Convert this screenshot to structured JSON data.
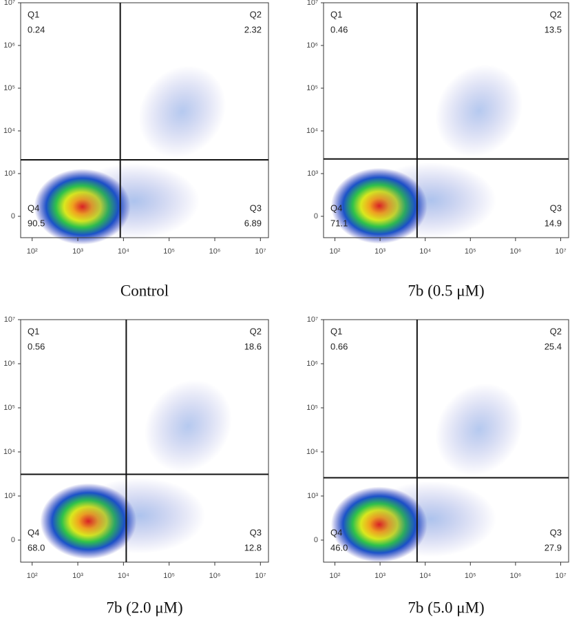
{
  "chart_data": [
    {
      "type": "scatter",
      "title": "Control",
      "x_scale": "log",
      "y_scale": "biexponential",
      "xlim": [
        56,
        15000000
      ],
      "ylim": [
        -500,
        10000000
      ],
      "xticks": [
        {
          "value": 100,
          "label": "10²"
        },
        {
          "value": 1000,
          "label": "10³"
        },
        {
          "value": 10000,
          "label": "10⁴"
        },
        {
          "value": 100000,
          "label": "10⁵"
        },
        {
          "value": 1000000,
          "label": "10⁶"
        },
        {
          "value": 10000000,
          "label": "10⁷"
        }
      ],
      "yticks": [
        0,
        {
          "value": 1000,
          "label": "10³"
        },
        {
          "value": 10000,
          "label": "10⁴"
        },
        {
          "value": 100000,
          "label": "10⁵"
        },
        {
          "value": 1000000,
          "label": "10⁶"
        },
        {
          "value": 10000000,
          "label": "10⁷"
        }
      ],
      "gate_x": 8500,
      "gate_y": 2100,
      "quadrant_names": [
        "Q1",
        "Q2",
        "Q3",
        "Q4"
      ],
      "quadrant_values": [
        0.24,
        2.32,
        6.89,
        90.5
      ],
      "quadrant_value_labels": [
        "0.24",
        "2.32",
        "6.89",
        "90.5"
      ]
    },
    {
      "type": "scatter",
      "title": "7b (0.5 μM)",
      "x_scale": "log",
      "y_scale": "biexponential",
      "xlim": [
        56,
        15000000
      ],
      "ylim": [
        -500,
        10000000
      ],
      "xticks": [
        {
          "value": 100,
          "label": "10²"
        },
        {
          "value": 1000,
          "label": "10³"
        },
        {
          "value": 10000,
          "label": "10⁴"
        },
        {
          "value": 100000,
          "label": "10⁵"
        },
        {
          "value": 1000000,
          "label": "10⁶"
        },
        {
          "value": 10000000,
          "label": "10⁷"
        }
      ],
      "yticks": [
        0,
        {
          "value": 1000,
          "label": "10³"
        },
        {
          "value": 10000,
          "label": "10⁴"
        },
        {
          "value": 100000,
          "label": "10⁵"
        },
        {
          "value": 1000000,
          "label": "10⁶"
        },
        {
          "value": 10000000,
          "label": "10⁷"
        }
      ],
      "gate_x": 6600,
      "gate_y": 2200,
      "quadrant_names": [
        "Q1",
        "Q2",
        "Q3",
        "Q4"
      ],
      "quadrant_values": [
        0.46,
        13.5,
        14.9,
        71.1
      ],
      "quadrant_value_labels": [
        "0.46",
        "13.5",
        "14.9",
        "71.1"
      ]
    },
    {
      "type": "scatter",
      "title": "7b (2.0 μM)",
      "x_scale": "log",
      "y_scale": "biexponential",
      "xlim": [
        56,
        15000000
      ],
      "ylim": [
        -500,
        10000000
      ],
      "xticks": [
        {
          "value": 100,
          "label": "10²"
        },
        {
          "value": 1000,
          "label": "10³"
        },
        {
          "value": 10000,
          "label": "10⁴"
        },
        {
          "value": 100000,
          "label": "10⁵"
        },
        {
          "value": 1000000,
          "label": "10⁶"
        },
        {
          "value": 10000000,
          "label": "10⁷"
        }
      ],
      "yticks": [
        0,
        {
          "value": 1000,
          "label": "10³"
        },
        {
          "value": 10000,
          "label": "10⁴"
        },
        {
          "value": 100000,
          "label": "10⁵"
        },
        {
          "value": 1000000,
          "label": "10⁶"
        },
        {
          "value": 10000000,
          "label": "10⁷"
        }
      ],
      "gate_x": 11500,
      "gate_y": 3100,
      "quadrant_names": [
        "Q1",
        "Q2",
        "Q3",
        "Q4"
      ],
      "quadrant_values": [
        0.56,
        18.6,
        12.8,
        68.0
      ],
      "quadrant_value_labels": [
        "0.56",
        "18.6",
        "12.8",
        "68.0"
      ]
    },
    {
      "type": "scatter",
      "title": "7b (5.0 μM)",
      "x_scale": "log",
      "y_scale": "biexponential",
      "xlim": [
        56,
        15000000
      ],
      "ylim": [
        -500,
        10000000
      ],
      "xticks": [
        {
          "value": 100,
          "label": "10²"
        },
        {
          "value": 1000,
          "label": "10³"
        },
        {
          "value": 10000,
          "label": "10⁴"
        },
        {
          "value": 100000,
          "label": "10⁵"
        },
        {
          "value": 1000000,
          "label": "10⁶"
        },
        {
          "value": 10000000,
          "label": "10⁷"
        }
      ],
      "yticks": [
        0,
        {
          "value": 1000,
          "label": "10³"
        },
        {
          "value": 10000,
          "label": "10⁴"
        },
        {
          "value": 100000,
          "label": "10⁵"
        },
        {
          "value": 1000000,
          "label": "10⁶"
        },
        {
          "value": 10000000,
          "label": "10⁷"
        }
      ],
      "gate_x": 6600,
      "gate_y": 2600,
      "quadrant_names": [
        "Q1",
        "Q2",
        "Q3",
        "Q4"
      ],
      "quadrant_values": [
        0.66,
        25.4,
        27.9,
        46.0
      ],
      "quadrant_value_labels": [
        "0.66",
        "25.4",
        "27.9",
        "46.0"
      ]
    }
  ]
}
